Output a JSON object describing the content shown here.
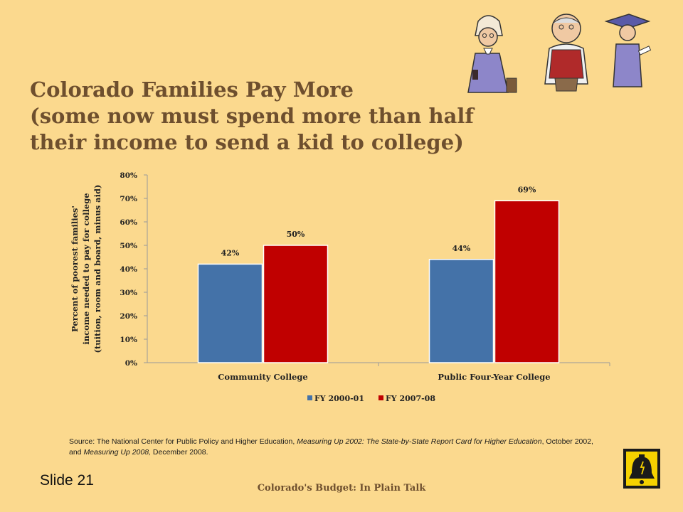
{
  "slide": {
    "title_lines": [
      "Colorado Families Pay More",
      "(some now must spend more than half",
      "their income to send a kid to college)"
    ],
    "source": {
      "prefix": "Source: The National Center for Public Policy and Higher Education, ",
      "pub1": "Measuring Up 2002: The State-by-State Report Card for Higher Education",
      "mid": ", October 2002, and ",
      "pub2": "Measuring Up 2008,",
      "suffix": " December 2008."
    },
    "slide_number": "Slide 21",
    "footer": "Colorado's Budget: In Plain Talk"
  },
  "chart_data": {
    "type": "bar",
    "categories": [
      "Community College",
      "Public Four-Year College"
    ],
    "series": [
      {
        "name": "FY 2000-01",
        "values": [
          42,
          44
        ],
        "labels": [
          "42%",
          "44%"
        ],
        "color": "#4472a8"
      },
      {
        "name": "FY 2007-08",
        "values": [
          50,
          69
        ],
        "labels": [
          "50%",
          "69%"
        ],
        "color": "#c00000"
      }
    ],
    "ylabel_lines": [
      "Percent of poorest families'",
      "income needed to pay for college",
      "(tuition, room and board, minus aid)"
    ],
    "ylim": [
      0,
      80
    ],
    "yticks": [
      0,
      10,
      20,
      30,
      40,
      50,
      60,
      70,
      80
    ],
    "ytick_labels": [
      "0%",
      "10%",
      "20%",
      "30%",
      "40%",
      "50%",
      "60%",
      "70%",
      "80%"
    ],
    "grid": false,
    "legend_position": "bottom"
  }
}
